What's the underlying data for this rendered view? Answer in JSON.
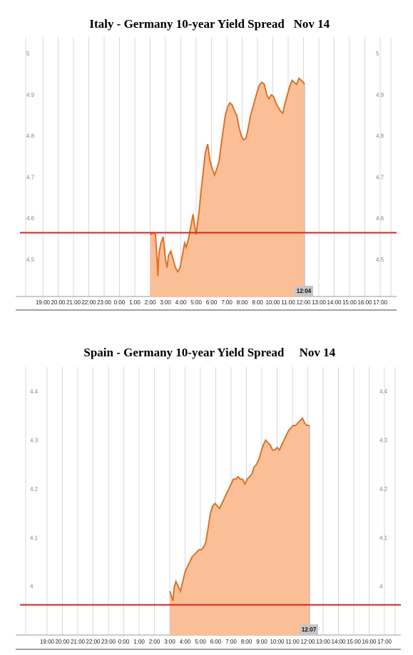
{
  "charts_meta": [
    {
      "title_left": "Italy - Germany 10-year Yield Spread",
      "title_right": "Nov 14"
    },
    {
      "title_left": "Spain - Germany 10-year Yield Spread",
      "title_right": "Nov 14"
    }
  ],
  "colors": {
    "fill": "#fbbf98",
    "line": "#e4701e",
    "ref": "#e0221a",
    "grid": "#d8d8d8",
    "marker": "#c6c6c6"
  },
  "chart_data": [
    {
      "type": "area",
      "title": "Italy - Germany 10-year Yield Spread  Nov 14",
      "x_tick_labels": [
        "19:00",
        "20:00",
        "21:00",
        "22:00",
        "23:00",
        "0:00",
        "1:00",
        "2:00",
        "3:00",
        "4:00",
        "5:00",
        "6:00",
        "7:00",
        "8:00",
        "9:00",
        "10:00",
        "11:00",
        "12:00",
        "13:00",
        "14:00",
        "15:00",
        "16:00",
        "17:00"
      ],
      "y_ticks": [
        4.5,
        4.6,
        4.7,
        4.8,
        4.9,
        5
      ],
      "ylim": [
        4.41,
        5.04
      ],
      "reference_line": 4.565,
      "current_time_label": "12:04",
      "grid": true,
      "series": [
        {
          "x": [
            2.0,
            2.2,
            2.35,
            2.45,
            2.5,
            2.55,
            2.6,
            2.7,
            2.85,
            3.0,
            3.1,
            3.2,
            3.35,
            3.5,
            3.65,
            3.8,
            3.95,
            4.05,
            4.15,
            4.25,
            4.35,
            4.5,
            4.65,
            4.8,
            4.9,
            5.0,
            5.1,
            5.2,
            5.3,
            5.45,
            5.6,
            5.75,
            5.9,
            6.05,
            6.2,
            6.35,
            6.5,
            6.6,
            6.75,
            6.9,
            7.05,
            7.2,
            7.35,
            7.5,
            7.65,
            7.8,
            7.95,
            8.1,
            8.25,
            8.4,
            8.55,
            8.7,
            8.85,
            9.0,
            9.15,
            9.3,
            9.45,
            9.6,
            9.75,
            9.9,
            10.05,
            10.2,
            10.35,
            10.5,
            10.65,
            10.8,
            10.95,
            11.1,
            11.25,
            11.4,
            11.55,
            11.7,
            11.85,
            12.0,
            12.07
          ],
          "values": [
            4.56,
            4.565,
            4.56,
            4.5,
            4.46,
            4.5,
            4.52,
            4.54,
            4.555,
            4.5,
            4.48,
            4.51,
            4.52,
            4.5,
            4.48,
            4.47,
            4.48,
            4.5,
            4.52,
            4.54,
            4.53,
            4.55,
            4.58,
            4.61,
            4.58,
            4.56,
            4.59,
            4.62,
            4.66,
            4.71,
            4.76,
            4.78,
            4.74,
            4.72,
            4.705,
            4.72,
            4.74,
            4.77,
            4.81,
            4.85,
            4.87,
            4.88,
            4.875,
            4.86,
            4.85,
            4.82,
            4.8,
            4.79,
            4.795,
            4.82,
            4.85,
            4.87,
            4.89,
            4.91,
            4.925,
            4.93,
            4.925,
            4.9,
            4.89,
            4.9,
            4.895,
            4.88,
            4.87,
            4.86,
            4.855,
            4.88,
            4.9,
            4.92,
            4.935,
            4.93,
            4.925,
            4.94,
            4.935,
            4.93,
            4.925
          ]
        }
      ]
    },
    {
      "type": "area",
      "title": "Spain - Germany 10-year Yield Spread  Nov 14",
      "x_tick_labels": [
        "19:00",
        "20:00",
        "21:00",
        "22:00",
        "23:00",
        "0:00",
        "1:00",
        "2:00",
        "3:00",
        "4:00",
        "5:00",
        "6:00",
        "7:00",
        "8:00",
        "9:00",
        "10:00",
        "11:00",
        "12:00",
        "13:00",
        "14:00",
        "15:00",
        "16:00",
        "17:00"
      ],
      "y_ticks": [
        4,
        4.1,
        4.2,
        4.3,
        4.4
      ],
      "ylim": [
        3.9,
        4.45
      ],
      "reference_line": 3.962,
      "current_time_label": "12:07",
      "grid": true,
      "series": [
        {
          "x": [
            3.0,
            3.1,
            3.2,
            3.3,
            3.4,
            3.55,
            3.7,
            3.85,
            4.0,
            4.15,
            4.3,
            4.45,
            4.6,
            4.75,
            4.9,
            5.05,
            5.2,
            5.35,
            5.5,
            5.65,
            5.8,
            5.95,
            6.1,
            6.25,
            6.4,
            6.55,
            6.7,
            6.85,
            7.0,
            7.15,
            7.3,
            7.45,
            7.6,
            7.75,
            7.9,
            8.05,
            8.2,
            8.35,
            8.5,
            8.65,
            8.8,
            8.95,
            9.1,
            9.25,
            9.4,
            9.55,
            9.7,
            9.85,
            10.0,
            10.15,
            10.3,
            10.45,
            10.6,
            10.75,
            10.9,
            11.05,
            11.2,
            11.35,
            11.5,
            11.65,
            11.8,
            11.95,
            12.05,
            12.12
          ],
          "values": [
            3.99,
            3.98,
            3.97,
            4.0,
            4.01,
            4.0,
            3.99,
            4.01,
            4.03,
            4.04,
            4.05,
            4.06,
            4.065,
            4.07,
            4.075,
            4.075,
            4.08,
            4.09,
            4.12,
            4.15,
            4.165,
            4.17,
            4.165,
            4.16,
            4.17,
            4.18,
            4.19,
            4.2,
            4.21,
            4.22,
            4.22,
            4.225,
            4.22,
            4.22,
            4.21,
            4.22,
            4.225,
            4.23,
            4.245,
            4.25,
            4.26,
            4.275,
            4.29,
            4.3,
            4.295,
            4.29,
            4.28,
            4.28,
            4.285,
            4.28,
            4.29,
            4.3,
            4.31,
            4.32,
            4.325,
            4.33,
            4.33,
            4.335,
            4.34,
            4.345,
            4.335,
            4.33,
            4.33,
            4.33
          ]
        }
      ]
    }
  ]
}
